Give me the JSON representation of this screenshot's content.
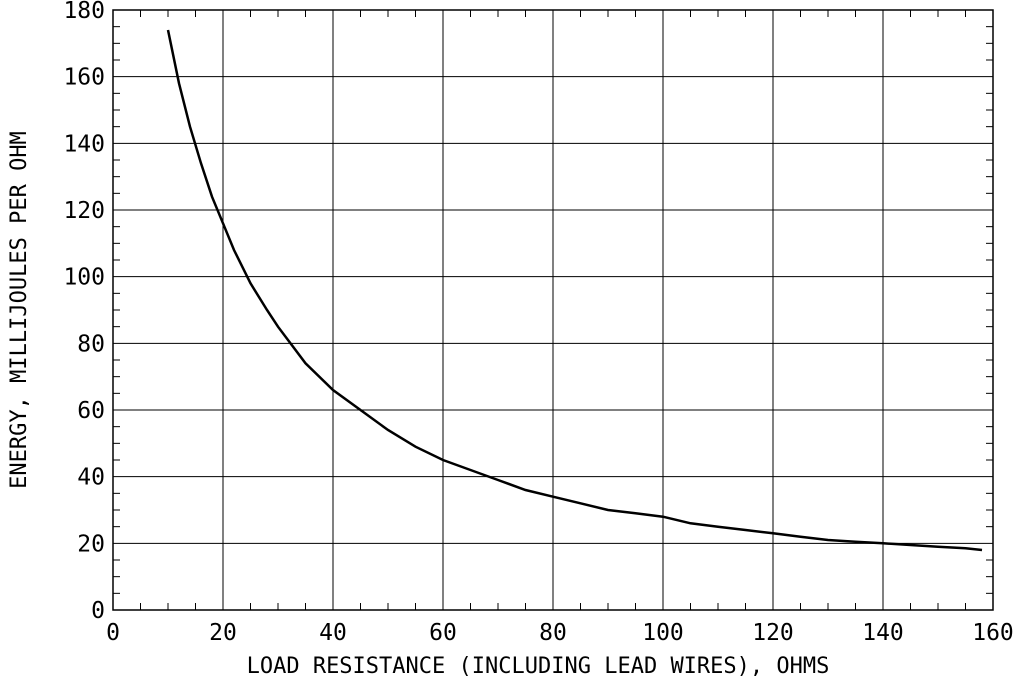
{
  "chart_data": {
    "type": "line",
    "title": "",
    "xlabel": "LOAD RESISTANCE (INCLUDING LEAD WIRES), OHMS",
    "ylabel": "ENERGY, MILLIJOULES PER OHM",
    "xlim": [
      0,
      160
    ],
    "ylim": [
      0,
      180
    ],
    "xticks": [
      "0",
      "20",
      "40",
      "60",
      "80",
      "100",
      "120",
      "140",
      "160"
    ],
    "yticks": [
      "0",
      "20",
      "40",
      "60",
      "80",
      "100",
      "120",
      "140",
      "160",
      "180"
    ],
    "grid": true,
    "series": [
      {
        "x": [
          10,
          12,
          14,
          16,
          18,
          20,
          22,
          25,
          28,
          30,
          35,
          40,
          45,
          50,
          55,
          60,
          65,
          70,
          75,
          80,
          85,
          90,
          95,
          100,
          105,
          110,
          115,
          120,
          125,
          130,
          135,
          140,
          145,
          150,
          155,
          158
        ],
        "y": [
          174,
          158,
          145,
          134,
          124,
          116,
          108,
          98,
          90,
          85,
          74,
          66,
          60,
          54,
          49,
          45,
          42,
          39,
          36,
          34,
          32,
          30,
          29,
          28,
          26,
          25,
          24,
          23,
          22,
          21,
          20.5,
          20,
          19.5,
          19,
          18.5,
          18
        ]
      }
    ]
  }
}
